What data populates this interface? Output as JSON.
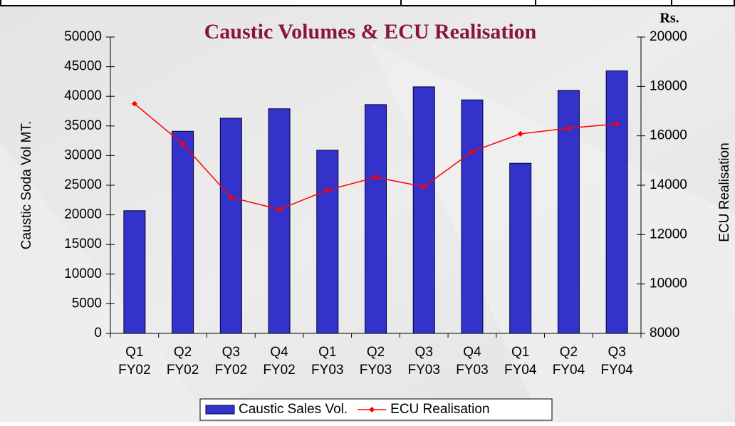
{
  "chart_data": {
    "type": "bar+line",
    "title": "Caustic Volumes & ECU Realisation",
    "y2_unit": "Rs.",
    "ylabel": "Caustic Soda Vol MT.",
    "y2label": "ECU Realisation",
    "categories": [
      [
        "Q1",
        "FY02"
      ],
      [
        "Q2",
        "FY02"
      ],
      [
        "Q3",
        "FY02"
      ],
      [
        "Q4",
        "FY02"
      ],
      [
        "Q1",
        "FY03"
      ],
      [
        "Q2",
        "FY03"
      ],
      [
        "Q3",
        "FY03"
      ],
      [
        "Q4",
        "FY03"
      ],
      [
        "Q1",
        "FY04"
      ],
      [
        "Q2",
        "FY04"
      ],
      [
        "Q3",
        "FY04"
      ]
    ],
    "series": [
      {
        "name": "Caustic Sales Vol.",
        "type": "bar",
        "axis": "y",
        "color": "#3333cc",
        "values": [
          20700,
          34100,
          36300,
          37900,
          30900,
          38600,
          41600,
          39400,
          28700,
          41000,
          44300
        ]
      },
      {
        "name": "ECU Realisation",
        "type": "line",
        "axis": "y2",
        "color": "#ff0000",
        "values": [
          17300,
          15670,
          13510,
          13020,
          13800,
          14320,
          13940,
          15360,
          16080,
          16310,
          16480
        ]
      }
    ],
    "ylim": [
      0,
      50000
    ],
    "yticks": [
      0,
      5000,
      10000,
      15000,
      20000,
      25000,
      30000,
      35000,
      40000,
      45000,
      50000
    ],
    "y2lim": [
      8000,
      20000
    ],
    "y2ticks": [
      8000,
      10000,
      12000,
      14000,
      16000,
      18000,
      20000
    ],
    "legend": "bottom"
  }
}
